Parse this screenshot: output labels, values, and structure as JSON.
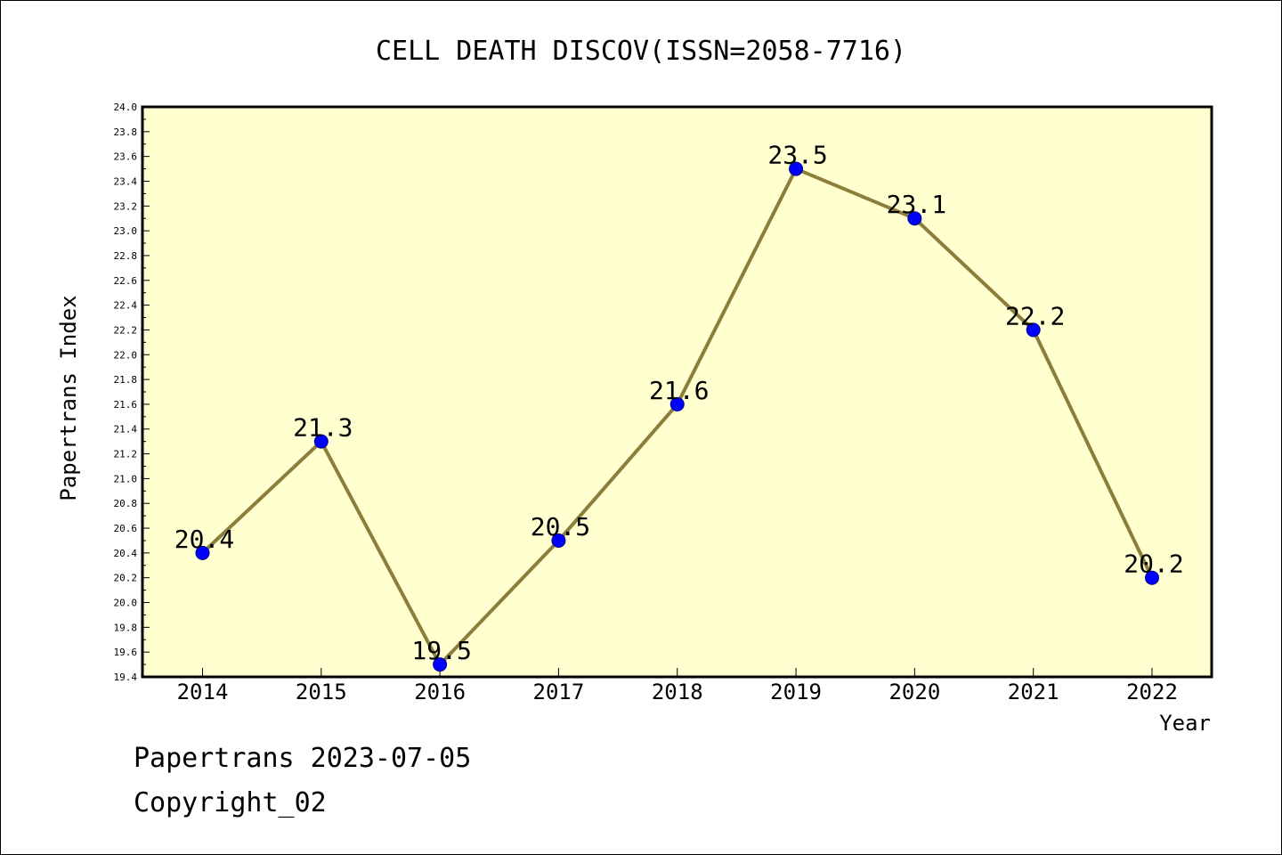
{
  "chart_data": {
    "type": "line",
    "title": "CELL DEATH DISCOV(ISSN=2058-7716)",
    "xlabel": "Year",
    "ylabel": "Papertrans Index",
    "categories": [
      "2014",
      "2015",
      "2016",
      "2017",
      "2018",
      "2019",
      "2020",
      "2021",
      "2022"
    ],
    "values": [
      20.4,
      21.3,
      19.5,
      20.5,
      21.6,
      23.5,
      23.1,
      22.2,
      20.2
    ],
    "data_labels": [
      "20.4",
      "21.3",
      "19.5",
      "20.5",
      "21.6",
      "23.5",
      "23.1",
      "22.2",
      "20.2"
    ],
    "ylim": [
      19.4,
      24.0
    ],
    "ytick_step": 0.2,
    "yticks": [
      "19.4",
      "19.6",
      "19.8",
      "20.0",
      "20.2",
      "20.4",
      "20.6",
      "20.8",
      "21.0",
      "21.2",
      "21.4",
      "21.6",
      "21.8",
      "22.0",
      "22.2",
      "22.4",
      "22.6",
      "22.8",
      "23.0",
      "23.2",
      "23.4",
      "23.6",
      "23.8",
      "24.0"
    ],
    "grid": false,
    "colors": {
      "plot_background": "#FFFFD0",
      "line": "#8B7D3A",
      "marker": "#0000FF",
      "marker_edge": "#00008B"
    }
  },
  "footer": {
    "line1": "Papertrans 2023-07-05",
    "line2": "Copyright_02"
  }
}
